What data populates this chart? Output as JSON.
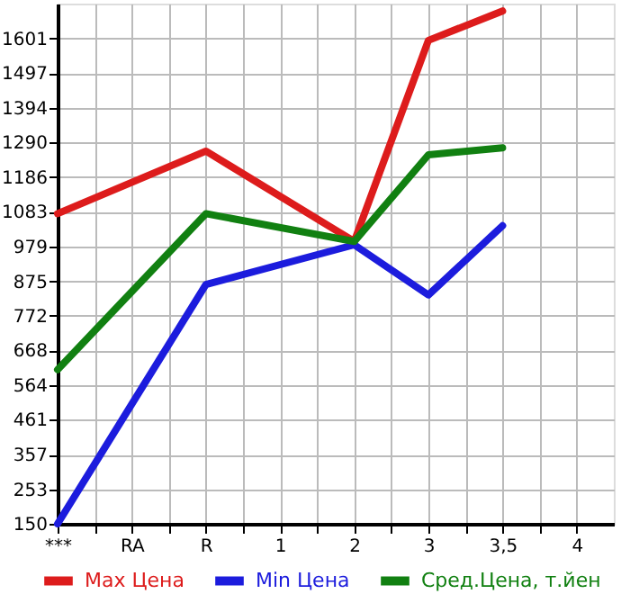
{
  "chart_data": {
    "type": "line",
    "categories": [
      "***",
      "RA",
      "R",
      "1",
      "2",
      "3",
      "3,5",
      "4"
    ],
    "series": [
      {
        "name": "Max Цена",
        "color": "#dd1c1c",
        "values": [
          1077,
          null,
          1264,
          null,
          994,
          1595,
          1683,
          null
        ]
      },
      {
        "name": "Min Цена",
        "color": "#1c1cdd",
        "values": [
          150,
          null,
          865,
          null,
          984,
          834,
          1041,
          null
        ]
      },
      {
        "name": "Сред.Цена, т.йен",
        "color": "#118011",
        "values": [
          611,
          null,
          1077,
          null,
          994,
          1253,
          1274,
          null
        ]
      }
    ],
    "ylim": [
      150,
      1705
    ],
    "yticks": [
      150,
      253,
      357,
      461,
      564,
      668,
      772,
      875,
      979,
      1083,
      1186,
      1290,
      1394,
      1497,
      1601
    ],
    "grid": true,
    "legend": "bottom",
    "marker": "none",
    "line_style": "solid"
  }
}
